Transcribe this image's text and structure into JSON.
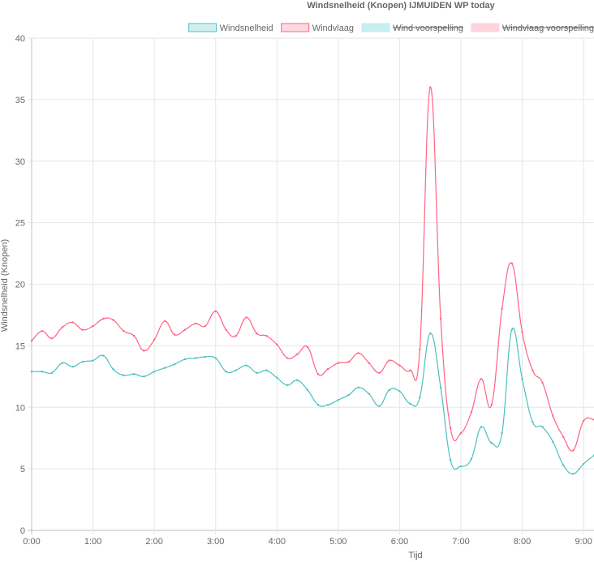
{
  "chart_data": {
    "type": "line",
    "title": "Windsnelheid (Knopen) IJMUIDEN WP today",
    "xlabel": "Tijd",
    "ylabel": "Windsnelheid (Knopen)",
    "ylim": [
      0,
      40
    ],
    "y_ticks": [
      0,
      5,
      10,
      15,
      20,
      25,
      30,
      35,
      40
    ],
    "xlim": [
      0,
      9.17
    ],
    "x_ticks": [
      0,
      1,
      2,
      3,
      4,
      5,
      6,
      7,
      8,
      9
    ],
    "x_tick_labels": [
      "0:00",
      "1:00",
      "2:00",
      "3:00",
      "4:00",
      "5:00",
      "6:00",
      "7:00",
      "8:00",
      "9:00"
    ],
    "grid": true,
    "legend_position": "top-right",
    "series": [
      {
        "name": "Windsnelheid",
        "color": "#4bc0c0",
        "hidden": false,
        "x": [
          0,
          0.17,
          0.33,
          0.5,
          0.67,
          0.83,
          1.0,
          1.17,
          1.33,
          1.5,
          1.67,
          1.83,
          2.0,
          2.17,
          2.33,
          2.5,
          2.67,
          2.83,
          3.0,
          3.17,
          3.33,
          3.5,
          3.67,
          3.83,
          4.0,
          4.17,
          4.33,
          4.5,
          4.67,
          4.83,
          5.0,
          5.17,
          5.33,
          5.5,
          5.67,
          5.83,
          6.0,
          6.17,
          6.33,
          6.5,
          6.67,
          6.83,
          7.0,
          7.17,
          7.33,
          7.5,
          7.67,
          7.83,
          8.0,
          8.17,
          8.33,
          8.5,
          8.67,
          8.83,
          9.0,
          9.17
        ],
        "values": [
          12.9,
          12.9,
          12.8,
          13.6,
          13.3,
          13.7,
          13.8,
          14.2,
          13.1,
          12.6,
          12.7,
          12.5,
          12.9,
          13.2,
          13.5,
          13.9,
          14.0,
          14.1,
          14.0,
          12.9,
          13.0,
          13.4,
          12.8,
          13.0,
          12.4,
          11.8,
          12.2,
          11.4,
          10.2,
          10.2,
          10.6,
          11.0,
          11.6,
          11.1,
          10.1,
          11.4,
          11.3,
          10.3,
          10.8,
          16.0,
          11.6,
          5.7,
          5.2,
          5.8,
          8.4,
          7.1,
          7.9,
          16.3,
          12.3,
          8.8,
          8.4,
          7.2,
          5.3,
          4.6,
          5.4,
          6.1
        ]
      },
      {
        "name": "Windvlaag",
        "color": "#ff6384",
        "hidden": false,
        "x": [
          0,
          0.17,
          0.33,
          0.5,
          0.67,
          0.83,
          1.0,
          1.17,
          1.33,
          1.5,
          1.67,
          1.83,
          2.0,
          2.17,
          2.33,
          2.5,
          2.67,
          2.83,
          3.0,
          3.17,
          3.33,
          3.5,
          3.67,
          3.83,
          4.0,
          4.17,
          4.33,
          4.5,
          4.67,
          4.83,
          5.0,
          5.17,
          5.33,
          5.5,
          5.67,
          5.83,
          6.0,
          6.17,
          6.33,
          6.5,
          6.67,
          6.83,
          7.0,
          7.17,
          7.33,
          7.5,
          7.67,
          7.83,
          8.0,
          8.17,
          8.33,
          8.5,
          8.67,
          8.83,
          9.0,
          9.17
        ],
        "values": [
          15.4,
          16.2,
          15.6,
          16.5,
          16.9,
          16.3,
          16.6,
          17.2,
          17.1,
          16.2,
          15.8,
          14.6,
          15.5,
          17.0,
          15.9,
          16.3,
          16.8,
          16.6,
          17.8,
          16.3,
          15.8,
          17.3,
          16.0,
          15.8,
          15.1,
          14.0,
          14.3,
          14.9,
          12.7,
          13.1,
          13.6,
          13.7,
          14.4,
          13.6,
          12.8,
          13.8,
          13.4,
          13.0,
          14.7,
          36.0,
          17.2,
          8.3,
          7.9,
          9.6,
          12.3,
          10.2,
          18.0,
          21.7,
          16.1,
          13.0,
          12.0,
          9.3,
          7.6,
          6.5,
          8.9,
          9.0
        ]
      },
      {
        "name": "Wind voorspelling",
        "color": "#c6eeee",
        "hidden": true,
        "x": [],
        "values": []
      },
      {
        "name": "Windvlaag voorspelling",
        "color": "#ffd3dd",
        "hidden": true,
        "x": [],
        "values": []
      }
    ]
  }
}
